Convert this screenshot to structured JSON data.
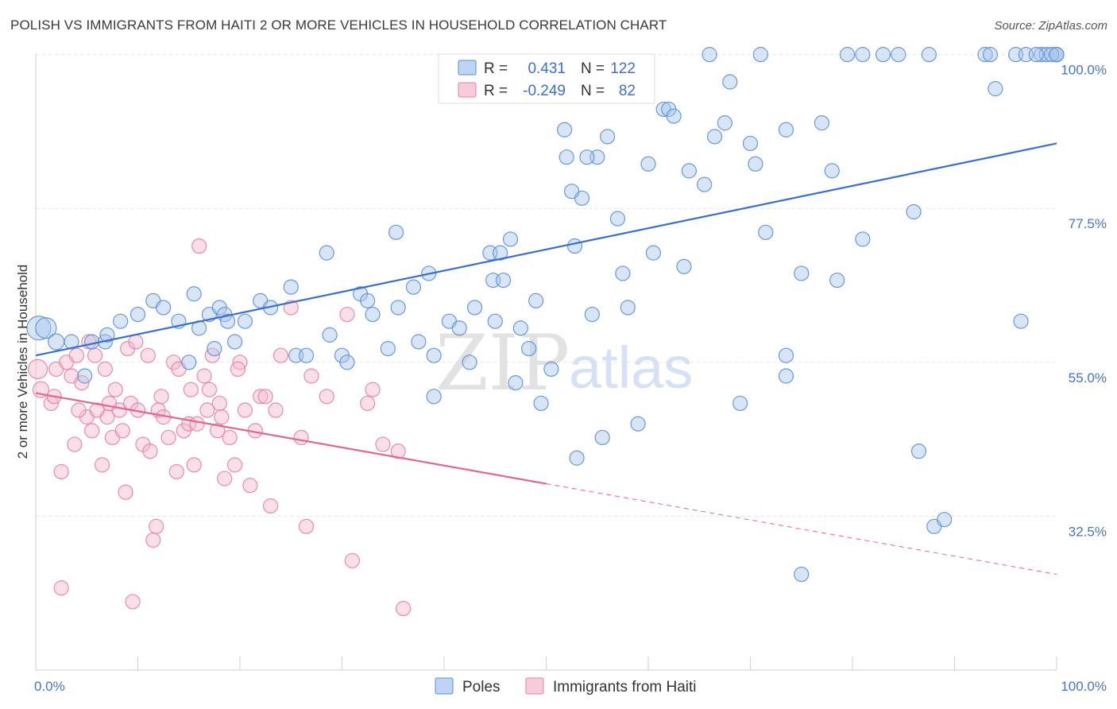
{
  "title": "POLISH VS IMMIGRANTS FROM HAITI 2 OR MORE VEHICLES IN HOUSEHOLD CORRELATION CHART",
  "source": "Source: ZipAtlas.com",
  "watermark": {
    "zip": "ZIP",
    "atlas": "atlas"
  },
  "colors": {
    "poles_fill": "#a9c6ee",
    "poles_stroke": "#5a8fd8",
    "poles_line": "#3a6fd0",
    "haiti_fill": "#f6b9cc",
    "haiti_stroke": "#e8819f",
    "haiti_line": "#e06890",
    "grid": "#e3e3e3",
    "tick_text": "#4a74c4"
  },
  "legend": {
    "r_label": "R =",
    "n_label": "N =",
    "rows": [
      {
        "series": "Poles",
        "r": "0.431",
        "n": "122"
      },
      {
        "series": "Immigrants from Haiti",
        "r": "-0.249",
        "n": "82"
      }
    ]
  },
  "chart_data": {
    "type": "scatter",
    "title": "POLISH VS IMMIGRANTS FROM HAITI 2 OR MORE VEHICLES IN HOUSEHOLD CORRELATION CHART",
    "xlabel": "",
    "ylabel": "2 or more Vehicles in Household",
    "xlim": [
      0,
      100
    ],
    "ylim": [
      10,
      101
    ],
    "x_tick_labels": [
      "0.0%",
      "100.0%"
    ],
    "y_ticks": [
      32.5,
      55.0,
      77.5,
      100.0
    ],
    "y_tick_labels": [
      "32.5%",
      "55.0%",
      "77.5%",
      "100.0%"
    ],
    "grid": true,
    "legend_position": "top-center",
    "series": [
      {
        "name": "Poles",
        "trend": {
          "x": [
            0,
            100
          ],
          "y": [
            56.0,
            87.0
          ],
          "dashed_from_x": null
        },
        "points": [
          [
            0.3,
            60,
            15
          ],
          [
            1.0,
            60,
            13
          ],
          [
            2.0,
            58,
            10
          ],
          [
            3.5,
            58,
            9
          ],
          [
            5.5,
            58,
            9
          ],
          [
            4.8,
            53,
            9
          ],
          [
            6.8,
            58,
            9
          ],
          [
            7.0,
            59,
            9
          ],
          [
            8.3,
            61,
            9
          ],
          [
            10.0,
            62,
            9
          ],
          [
            11.5,
            64,
            9
          ],
          [
            12.5,
            63,
            9
          ],
          [
            14.0,
            61,
            9
          ],
          [
            15.5,
            65,
            9
          ],
          [
            16.0,
            60,
            9
          ],
          [
            17.0,
            62,
            9
          ],
          [
            18.0,
            63,
            9
          ],
          [
            18.5,
            62,
            9
          ],
          [
            18.8,
            61,
            9
          ],
          [
            19.5,
            58,
            9
          ],
          [
            20.5,
            61,
            9
          ],
          [
            22.0,
            64,
            9
          ],
          [
            23.0,
            63,
            9
          ],
          [
            25.0,
            66,
            9
          ],
          [
            25.5,
            56,
            9
          ],
          [
            26.5,
            56,
            9
          ],
          [
            28.5,
            71,
            9
          ],
          [
            28.8,
            59,
            9
          ],
          [
            30.0,
            56,
            9
          ],
          [
            30.5,
            55,
            9
          ],
          [
            31.8,
            65,
            9
          ],
          [
            32.5,
            64,
            9
          ],
          [
            33.0,
            62,
            9
          ],
          [
            34.5,
            57,
            9
          ],
          [
            35.3,
            74,
            9
          ],
          [
            35.5,
            63,
            9
          ],
          [
            37.0,
            66,
            9
          ],
          [
            37.5,
            58,
            9
          ],
          [
            38.5,
            68,
            9
          ],
          [
            39.0,
            56,
            9
          ],
          [
            40.5,
            61,
            9
          ],
          [
            41.5,
            60,
            9
          ],
          [
            42.5,
            55,
            9
          ],
          [
            43.0,
            63,
            9
          ],
          [
            44.5,
            71,
            9
          ],
          [
            44.8,
            67,
            9
          ],
          [
            45.5,
            71,
            9
          ],
          [
            45.8,
            67,
            9
          ],
          [
            46.5,
            73,
            9
          ],
          [
            47.0,
            52,
            9
          ],
          [
            47.5,
            60,
            9
          ],
          [
            48.3,
            57,
            9
          ],
          [
            49.0,
            64,
            9
          ],
          [
            49.5,
            49,
            9
          ],
          [
            50.5,
            54,
            9
          ],
          [
            51.8,
            89,
            9
          ],
          [
            52.0,
            85,
            9
          ],
          [
            52.8,
            72,
            9
          ],
          [
            53.5,
            79,
            9
          ],
          [
            54.5,
            62,
            9
          ],
          [
            55.0,
            85,
            9
          ],
          [
            56.0,
            88,
            9
          ],
          [
            57.0,
            76,
            9
          ],
          [
            57.5,
            68,
            9
          ],
          [
            58.0,
            63,
            9
          ],
          [
            59.0,
            46,
            9
          ],
          [
            60.5,
            71,
            9
          ],
          [
            61.5,
            92,
            9
          ],
          [
            62.0,
            92,
            9
          ],
          [
            63.5,
            69,
            9
          ],
          [
            64.0,
            83,
            9
          ],
          [
            65.5,
            81,
            9
          ],
          [
            66.5,
            88,
            9
          ],
          [
            66.0,
            100,
            9
          ],
          [
            67.5,
            90,
            9
          ],
          [
            68.0,
            96,
            9
          ],
          [
            69.0,
            49,
            9
          ],
          [
            70.0,
            87,
            9
          ],
          [
            71.0,
            100,
            9
          ],
          [
            73.5,
            89,
            9
          ],
          [
            73.5,
            56,
            9
          ],
          [
            75.0,
            68,
            9
          ],
          [
            77.0,
            90,
            9
          ],
          [
            78.0,
            83,
            9
          ],
          [
            79.5,
            100,
            9
          ],
          [
            81.0,
            73,
            9
          ],
          [
            83.0,
            100,
            9
          ],
          [
            86.0,
            77,
            9
          ],
          [
            86.5,
            42,
            9
          ],
          [
            88.0,
            31,
            9
          ],
          [
            89.0,
            32,
            9
          ],
          [
            93.0,
            100,
            9
          ],
          [
            94.0,
            95,
            9
          ],
          [
            96.5,
            61,
            9
          ],
          [
            98.5,
            100,
            9
          ],
          [
            99.0,
            100,
            9
          ],
          [
            100.0,
            100,
            9
          ],
          [
            100.0,
            100,
            9
          ],
          [
            39.0,
            50,
            9
          ],
          [
            53.0,
            41,
            9
          ],
          [
            55.5,
            44,
            9
          ],
          [
            45.0,
            61,
            9
          ],
          [
            52.5,
            80,
            9
          ],
          [
            54.0,
            85,
            9
          ],
          [
            60.0,
            84,
            9
          ],
          [
            62.5,
            91,
            9
          ],
          [
            70.5,
            84,
            9
          ],
          [
            71.5,
            74,
            9
          ],
          [
            73.5,
            53,
            9
          ],
          [
            75.0,
            24,
            9
          ],
          [
            78.5,
            67,
            9
          ],
          [
            81.0,
            100,
            9
          ],
          [
            84.5,
            100,
            9
          ],
          [
            87.5,
            100,
            9
          ],
          [
            93.5,
            100,
            9
          ],
          [
            96.0,
            100,
            9
          ],
          [
            97.0,
            100,
            9
          ],
          [
            98.0,
            100,
            9
          ],
          [
            99.5,
            100,
            9
          ],
          [
            100.0,
            100,
            9
          ],
          [
            15.0,
            55,
            9
          ],
          [
            17.5,
            57,
            9
          ]
        ]
      },
      {
        "name": "Immigrants from Haiti",
        "trend": {
          "x": [
            0,
            100
          ],
          "y": [
            50.5,
            24.0
          ],
          "dashed_from_x": 50
        },
        "points": [
          [
            0.2,
            54,
            12
          ],
          [
            0.5,
            51,
            10
          ],
          [
            1.5,
            49,
            9
          ],
          [
            2.0,
            54,
            9
          ],
          [
            2.5,
            39,
            9
          ],
          [
            2.5,
            22,
            9
          ],
          [
            3.0,
            55,
            9
          ],
          [
            3.5,
            53,
            9
          ],
          [
            4.0,
            56,
            9
          ],
          [
            4.5,
            52,
            9
          ],
          [
            5.0,
            47,
            9
          ],
          [
            5.2,
            58,
            9
          ],
          [
            5.8,
            56,
            9
          ],
          [
            6.5,
            40,
            9
          ],
          [
            6.8,
            54,
            9
          ],
          [
            7.0,
            47,
            9
          ],
          [
            7.5,
            44,
            9
          ],
          [
            7.8,
            51,
            9
          ],
          [
            8.2,
            48,
            9
          ],
          [
            8.5,
            45,
            9
          ],
          [
            9.0,
            57,
            9
          ],
          [
            9.3,
            49,
            9
          ],
          [
            9.8,
            58,
            9
          ],
          [
            10.0,
            48,
            9
          ],
          [
            10.5,
            43,
            9
          ],
          [
            11.0,
            56,
            9
          ],
          [
            11.5,
            29,
            9
          ],
          [
            11.8,
            31,
            9
          ],
          [
            12.0,
            48,
            9
          ],
          [
            12.3,
            50,
            9
          ],
          [
            12.5,
            47,
            9
          ],
          [
            13.0,
            44,
            9
          ],
          [
            13.5,
            55,
            9
          ],
          [
            14.0,
            54,
            9
          ],
          [
            14.5,
            45,
            9
          ],
          [
            15.0,
            46,
            9
          ],
          [
            15.5,
            40,
            9
          ],
          [
            15.8,
            46,
            9
          ],
          [
            16.0,
            72,
            9
          ],
          [
            16.5,
            53,
            9
          ],
          [
            17.0,
            51,
            9
          ],
          [
            17.3,
            56,
            9
          ],
          [
            17.8,
            45,
            9
          ],
          [
            18.0,
            49,
            9
          ],
          [
            18.5,
            38,
            9
          ],
          [
            19.0,
            44,
            9
          ],
          [
            19.5,
            40,
            9
          ],
          [
            20.0,
            55,
            9
          ],
          [
            20.5,
            48,
            9
          ],
          [
            21.0,
            37,
            9
          ],
          [
            21.5,
            45,
            9
          ],
          [
            22.0,
            50,
            9
          ],
          [
            23.0,
            34,
            9
          ],
          [
            23.5,
            48,
            9
          ],
          [
            24.0,
            56,
            9
          ],
          [
            25.0,
            63,
            9
          ],
          [
            26.0,
            44,
            9
          ],
          [
            26.5,
            31,
            9
          ],
          [
            27.0,
            53,
            9
          ],
          [
            28.5,
            50,
            9
          ],
          [
            30.5,
            62,
            9
          ],
          [
            31.0,
            26,
            9
          ],
          [
            32.5,
            49,
            9
          ],
          [
            34.0,
            43,
            9
          ],
          [
            35.5,
            42,
            9
          ],
          [
            36.0,
            19,
            9
          ],
          [
            33.0,
            51,
            9
          ],
          [
            9.5,
            20,
            9
          ],
          [
            1.8,
            50,
            9
          ],
          [
            3.8,
            43,
            9
          ],
          [
            4.2,
            48,
            9
          ],
          [
            5.5,
            45,
            9
          ],
          [
            6.0,
            48,
            9
          ],
          [
            7.2,
            49,
            9
          ],
          [
            8.8,
            36,
            9
          ],
          [
            11.2,
            42,
            9
          ],
          [
            13.8,
            39,
            9
          ],
          [
            15.2,
            51,
            9
          ],
          [
            16.8,
            48,
            9
          ],
          [
            18.2,
            47,
            9
          ],
          [
            19.8,
            54,
            9
          ],
          [
            22.5,
            50,
            9
          ]
        ]
      }
    ]
  }
}
